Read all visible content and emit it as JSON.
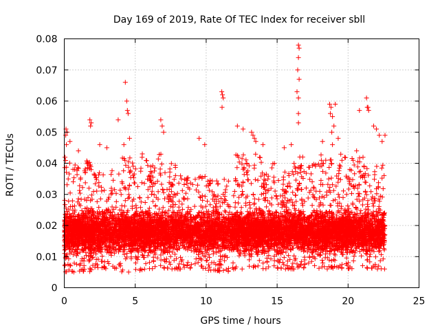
{
  "chart_data": {
    "type": "scatter",
    "title": "Day 169 of 2019, Rate Of TEC Index for receiver sbll",
    "xlabel": "GPS time / hours",
    "ylabel": "ROTI / TECUs",
    "xlim": [
      0,
      25
    ],
    "ylim": [
      0,
      0.08
    ],
    "x_ticks": [
      0,
      5,
      10,
      15,
      20,
      25
    ],
    "y_ticks": [
      0,
      0.01,
      0.02,
      0.03,
      0.04,
      0.05,
      0.06,
      0.07,
      0.08
    ],
    "x_tick_labels": [
      "0",
      "5",
      "10",
      "15",
      "20",
      "25"
    ],
    "y_tick_labels": [
      "0",
      "0.01",
      "0.02",
      "0.03",
      "0.04",
      "0.05",
      "0.06",
      "0.07",
      "0.08"
    ],
    "grid": true,
    "marker": "plus",
    "point_color": "#ff0000",
    "series": [
      {
        "name": "ROTI",
        "points": [
          [
            0.1,
            0.049
          ],
          [
            0.12,
            0.051
          ],
          [
            0.2,
            0.05
          ],
          [
            0.15,
            0.046
          ],
          [
            0.4,
            0.047
          ],
          [
            1.0,
            0.044
          ],
          [
            1.8,
            0.054
          ],
          [
            1.85,
            0.052
          ],
          [
            1.9,
            0.053
          ],
          [
            2.5,
            0.046
          ],
          [
            3.0,
            0.045
          ],
          [
            3.8,
            0.054
          ],
          [
            4.3,
            0.066
          ],
          [
            4.4,
            0.06
          ],
          [
            4.45,
            0.057
          ],
          [
            4.5,
            0.056
          ],
          [
            4.2,
            0.046
          ],
          [
            4.6,
            0.048
          ],
          [
            5.5,
            0.043
          ],
          [
            6.8,
            0.054
          ],
          [
            6.9,
            0.052
          ],
          [
            7.0,
            0.05
          ],
          [
            9.5,
            0.048
          ],
          [
            9.9,
            0.046
          ],
          [
            11.1,
            0.063
          ],
          [
            11.15,
            0.062
          ],
          [
            11.2,
            0.061
          ],
          [
            11.12,
            0.058
          ],
          [
            12.2,
            0.052
          ],
          [
            12.6,
            0.051
          ],
          [
            13.2,
            0.05
          ],
          [
            13.3,
            0.049
          ],
          [
            13.4,
            0.048
          ],
          [
            13.5,
            0.047
          ],
          [
            14.0,
            0.046
          ],
          [
            15.5,
            0.045
          ],
          [
            16.0,
            0.046
          ],
          [
            16.5,
            0.078
          ],
          [
            16.55,
            0.077
          ],
          [
            16.5,
            0.074
          ],
          [
            16.45,
            0.07
          ],
          [
            16.55,
            0.067
          ],
          [
            16.4,
            0.063
          ],
          [
            16.5,
            0.061
          ],
          [
            16.5,
            0.056
          ],
          [
            16.5,
            0.053
          ],
          [
            16.6,
            0.042
          ],
          [
            16.8,
            0.042
          ],
          [
            18.2,
            0.047
          ],
          [
            18.7,
            0.059
          ],
          [
            18.8,
            0.058
          ],
          [
            18.75,
            0.056
          ],
          [
            18.9,
            0.055
          ],
          [
            19.0,
            0.052
          ],
          [
            18.85,
            0.05
          ],
          [
            18.9,
            0.046
          ],
          [
            19.1,
            0.059
          ],
          [
            19.3,
            0.048
          ],
          [
            20.6,
            0.044
          ],
          [
            20.8,
            0.057
          ],
          [
            21.3,
            0.061
          ],
          [
            21.35,
            0.058
          ],
          [
            21.4,
            0.058
          ],
          [
            21.45,
            0.057
          ],
          [
            21.8,
            0.052
          ],
          [
            22.0,
            0.051
          ],
          [
            22.2,
            0.049
          ],
          [
            22.4,
            0.047
          ],
          [
            22.6,
            0.049
          ]
        ],
        "bulk": [
          {
            "x_range": [
              0.0,
              2.0
            ],
            "y_range": [
              0.005,
              0.042
            ],
            "count": 900
          },
          {
            "x_range": [
              2.0,
              4.0
            ],
            "y_range": [
              0.006,
              0.038
            ],
            "count": 650
          },
          {
            "x_range": [
              4.0,
              6.0
            ],
            "y_range": [
              0.005,
              0.042
            ],
            "count": 750
          },
          {
            "x_range": [
              6.0,
              8.0
            ],
            "y_range": [
              0.006,
              0.043
            ],
            "count": 750
          },
          {
            "x_range": [
              8.0,
              10.0
            ],
            "y_range": [
              0.006,
              0.036
            ],
            "count": 600
          },
          {
            "x_range": [
              10.0,
              12.0
            ],
            "y_range": [
              0.005,
              0.036
            ],
            "count": 650
          },
          {
            "x_range": [
              12.0,
              14.0
            ],
            "y_range": [
              0.006,
              0.043
            ],
            "count": 800
          },
          {
            "x_range": [
              14.0,
              16.0
            ],
            "y_range": [
              0.006,
              0.04
            ],
            "count": 750
          },
          {
            "x_range": [
              16.0,
              18.0
            ],
            "y_range": [
              0.006,
              0.04
            ],
            "count": 700
          },
          {
            "x_range": [
              18.0,
              20.0
            ],
            "y_range": [
              0.006,
              0.043
            ],
            "count": 800
          },
          {
            "x_range": [
              20.0,
              22.6
            ],
            "y_range": [
              0.006,
              0.042
            ],
            "count": 950
          }
        ]
      }
    ]
  }
}
